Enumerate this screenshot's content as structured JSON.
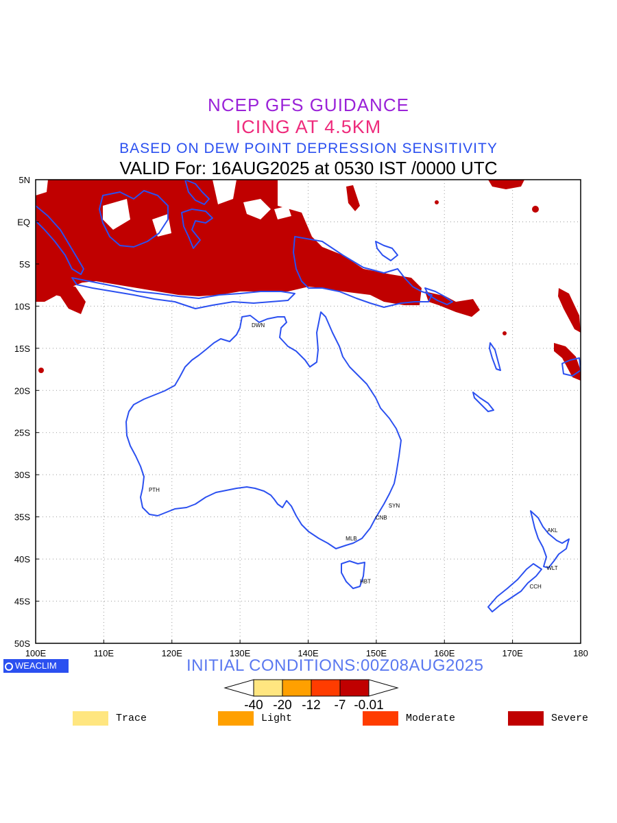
{
  "titles": {
    "line1": "NCEP GFS GUIDANCE",
    "line2": "ICING AT 4.5KM",
    "line3": "BASED ON DEW POINT DEPRESSION SENSITIVITY",
    "line4": "VALID For: 16AUG2025 at 0530 IST /0000 UTC"
  },
  "map": {
    "lon_labels": [
      "100E",
      "110E",
      "120E",
      "130E",
      "140E",
      "150E",
      "160E",
      "170E",
      "180"
    ],
    "lat_labels": [
      "5N",
      "EQ",
      "5S",
      "10S",
      "15S",
      "20S",
      "25S",
      "30S",
      "35S",
      "40S",
      "45S",
      "50S"
    ],
    "lon_range": [
      100,
      180
    ],
    "lat_range": [
      5,
      -50
    ],
    "grid": "dotted",
    "colors": {
      "coastline": "#2b50f0",
      "severe": "#c00000",
      "moderate": "#ff3c00",
      "light": "#ffa000",
      "trace": "#ffe680"
    },
    "stations": [
      {
        "code": "DWN",
        "lon": 131.7,
        "lat": -12.5
      },
      {
        "code": "PTH",
        "lon": 116.6,
        "lat": -32.0
      },
      {
        "code": "SYN",
        "lon": 151.8,
        "lat": -33.9
      },
      {
        "code": "CNB",
        "lon": 149.9,
        "lat": -35.3
      },
      {
        "code": "MLB",
        "lon": 145.5,
        "lat": -37.8
      },
      {
        "code": "HBT",
        "lon": 147.6,
        "lat": -42.9
      },
      {
        "code": "AKL",
        "lon": 175.1,
        "lat": -36.8
      },
      {
        "code": "WLT",
        "lon": 175.0,
        "lat": -41.3
      },
      {
        "code": "CCH",
        "lon": 172.5,
        "lat": -43.5
      }
    ]
  },
  "logo": "WEACLIM",
  "initial_conditions": "INITIAL CONDITIONS:00Z08AUG2025",
  "colorbar": {
    "labels": [
      "-40",
      "-20",
      "-12",
      "-7",
      "-0.01"
    ],
    "colors": [
      "#ffe680",
      "#ffa000",
      "#ff3c00",
      "#c00000"
    ]
  },
  "legend": [
    {
      "label": "Trace",
      "color": "#ffe680"
    },
    {
      "label": "Light",
      "color": "#ffa000"
    },
    {
      "label": "Moderate",
      "color": "#ff3c00"
    },
    {
      "label": "Severe",
      "color": "#c00000"
    }
  ]
}
